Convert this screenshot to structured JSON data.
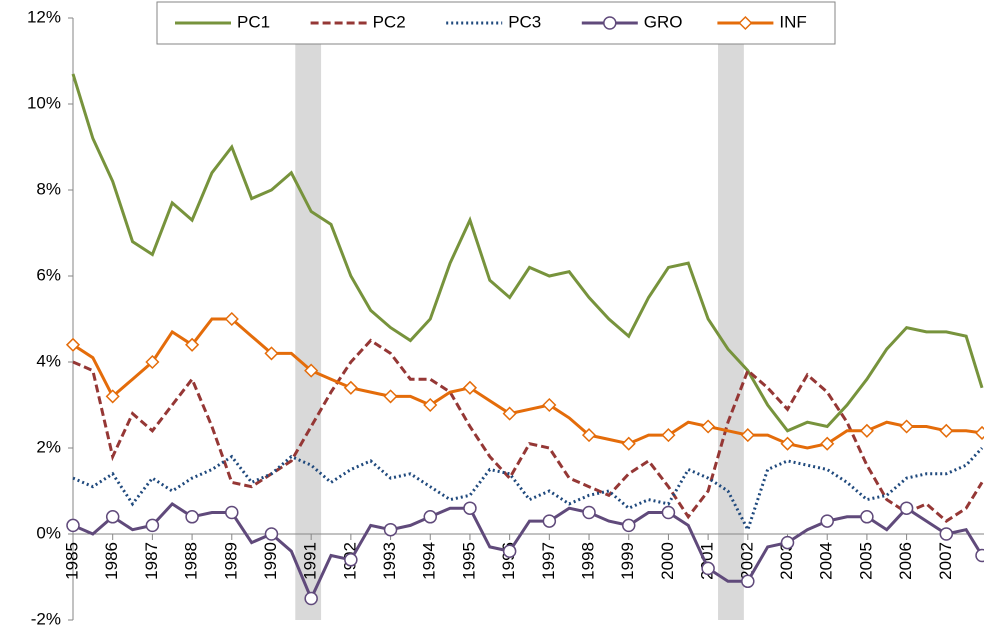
{
  "chart_data": {
    "type": "line",
    "x": [
      1985,
      1985.5,
      1986,
      1986.5,
      1987,
      1987.5,
      1988,
      1988.5,
      1989,
      1989.5,
      1990,
      1990.5,
      1991,
      1991.5,
      1992,
      1992.5,
      1993,
      1993.5,
      1994,
      1994.5,
      1995,
      1995.5,
      1996,
      1996.5,
      1997,
      1997.5,
      1998,
      1998.5,
      1999,
      1999.5,
      2000,
      2000.5,
      2001,
      2001.5,
      2002,
      2002.5,
      2003,
      2003.5,
      2004,
      2004.5,
      2005,
      2005.5,
      2006,
      2006.5,
      2007,
      2007.5,
      2007.9
    ],
    "series": [
      {
        "name": "PC1",
        "color": "#77933c",
        "dash": "solid",
        "marker": "none",
        "values": [
          10.7,
          9.2,
          8.2,
          6.8,
          6.5,
          7.7,
          7.3,
          8.4,
          9.0,
          7.8,
          8.0,
          8.4,
          7.5,
          7.2,
          6.0,
          5.2,
          4.8,
          4.5,
          5.0,
          6.3,
          7.3,
          5.9,
          5.5,
          6.2,
          6.0,
          6.1,
          5.5,
          5.0,
          4.6,
          5.5,
          6.2,
          6.3,
          5.0,
          4.3,
          3.8,
          3.0,
          2.4,
          2.6,
          2.5,
          3.0,
          3.6,
          4.3,
          4.8,
          4.7,
          4.7,
          4.6,
          3.4
        ]
      },
      {
        "name": "PC2",
        "color": "#953735",
        "dash": "dashed",
        "marker": "none",
        "values": [
          4.0,
          3.8,
          1.8,
          2.8,
          2.4,
          3.0,
          3.6,
          2.5,
          1.2,
          1.1,
          1.4,
          1.7,
          2.5,
          3.3,
          4.0,
          4.5,
          4.2,
          3.6,
          3.6,
          3.3,
          2.5,
          1.8,
          1.3,
          2.1,
          2.0,
          1.3,
          1.1,
          0.9,
          1.4,
          1.7,
          1.1,
          0.4,
          1.0,
          2.6,
          3.8,
          3.4,
          2.9,
          3.7,
          3.3,
          2.6,
          1.6,
          0.8,
          0.5,
          0.7,
          0.3,
          0.6,
          1.2
        ]
      },
      {
        "name": "PC3",
        "color": "#1f497d",
        "dash": "dotted",
        "marker": "none",
        "values": [
          1.3,
          1.1,
          1.4,
          0.7,
          1.3,
          1.0,
          1.3,
          1.5,
          1.8,
          1.2,
          1.4,
          1.8,
          1.6,
          1.2,
          1.5,
          1.7,
          1.3,
          1.4,
          1.1,
          0.8,
          0.9,
          1.5,
          1.4,
          0.8,
          1.0,
          0.7,
          0.9,
          1.0,
          0.6,
          0.8,
          0.7,
          1.5,
          1.3,
          1.0,
          0.1,
          1.5,
          1.7,
          1.6,
          1.5,
          1.2,
          0.8,
          0.9,
          1.3,
          1.4,
          1.4,
          1.6,
          2.0
        ]
      },
      {
        "name": "GRO",
        "color": "#604a7b",
        "dash": "solid",
        "marker": "circle",
        "values": [
          0.2,
          0.0,
          0.4,
          0.1,
          0.2,
          0.7,
          0.4,
          0.5,
          0.5,
          -0.2,
          0.0,
          -0.4,
          -1.5,
          -0.5,
          -0.6,
          0.2,
          0.1,
          0.2,
          0.4,
          0.6,
          0.6,
          -0.3,
          -0.4,
          0.3,
          0.3,
          0.6,
          0.5,
          0.3,
          0.2,
          0.5,
          0.5,
          0.2,
          -0.8,
          -1.1,
          -1.1,
          -0.3,
          -0.2,
          0.1,
          0.3,
          0.4,
          0.4,
          0.1,
          0.6,
          0.3,
          0.0,
          0.1,
          -0.5
        ]
      },
      {
        "name": "INF",
        "color": "#e46c0a",
        "dash": "solid",
        "marker": "diamond",
        "values": [
          4.4,
          4.1,
          3.2,
          3.6,
          4.0,
          4.7,
          4.4,
          5.0,
          5.0,
          4.6,
          4.2,
          4.2,
          3.8,
          3.6,
          3.4,
          3.3,
          3.2,
          3.2,
          3.0,
          3.3,
          3.4,
          3.1,
          2.8,
          2.9,
          3.0,
          2.7,
          2.3,
          2.2,
          2.1,
          2.3,
          2.3,
          2.6,
          2.5,
          2.4,
          2.3,
          2.3,
          2.1,
          2.0,
          2.1,
          2.4,
          2.4,
          2.6,
          2.5,
          2.5,
          2.4,
          2.4,
          2.35
        ]
      }
    ],
    "recessions": [
      [
        1990.6,
        1991.25
      ],
      [
        2001.25,
        2001.9
      ]
    ],
    "xlim": [
      1985,
      2007.95
    ],
    "xticks": [
      1985,
      1986,
      1987,
      1988,
      1989,
      1990,
      1991,
      1992,
      1993,
      1994,
      1995,
      1996,
      1997,
      1998,
      1999,
      2000,
      2001,
      2002,
      2003,
      2004,
      2005,
      2006,
      2007
    ],
    "ylim": [
      -2,
      12
    ],
    "yticks": [
      {
        "value": -2,
        "label": "-2%"
      },
      {
        "value": 0,
        "label": "0%"
      },
      {
        "value": 2,
        "label": "2%"
      },
      {
        "value": 4,
        "label": "4%"
      },
      {
        "value": 6,
        "label": "6%"
      },
      {
        "value": 8,
        "label": "8%"
      },
      {
        "value": 10,
        "label": "10%"
      },
      {
        "value": 12,
        "label": "12%"
      }
    ],
    "legend": "top"
  }
}
